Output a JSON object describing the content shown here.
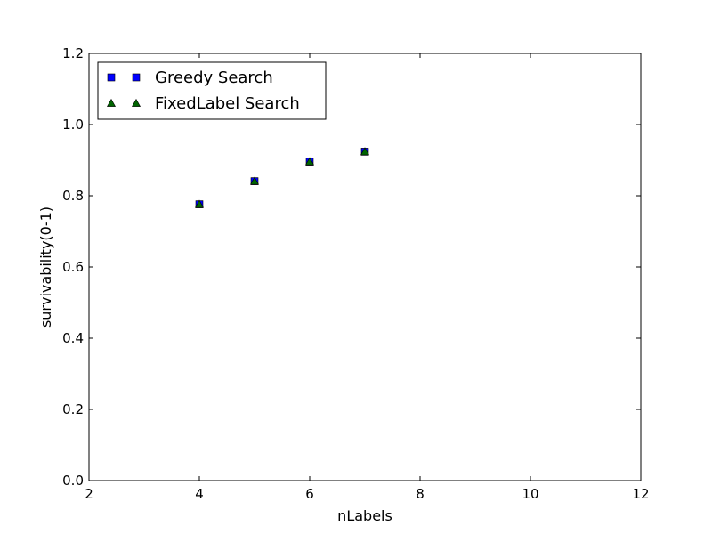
{
  "chart_data": {
    "type": "scatter",
    "title": "",
    "xlabel": "nLabels",
    "ylabel": "survivability(0-1)",
    "xlim": [
      2,
      12
    ],
    "ylim": [
      0.0,
      1.2
    ],
    "xticks": [
      2,
      4,
      6,
      8,
      10,
      12
    ],
    "yticks": [
      0.0,
      0.2,
      0.4,
      0.6,
      0.8,
      1.0,
      1.2
    ],
    "xtick_labels": [
      "2",
      "4",
      "6",
      "8",
      "10",
      "12"
    ],
    "ytick_labels": [
      "0.0",
      "0.2",
      "0.4",
      "0.6",
      "0.8",
      "1.0",
      "1.2"
    ],
    "grid": false,
    "legend_position": "top-left",
    "series": [
      {
        "name": "Greedy Search",
        "marker": "square",
        "color": "#0000ff",
        "x": [
          4,
          5,
          6,
          7
        ],
        "y": [
          0.776,
          0.841,
          0.896,
          0.924
        ]
      },
      {
        "name": "FixedLabel Search",
        "marker": "triangle",
        "color": "#006400",
        "x": [
          4,
          5,
          6,
          7
        ],
        "y": [
          0.776,
          0.841,
          0.896,
          0.924
        ]
      }
    ]
  }
}
